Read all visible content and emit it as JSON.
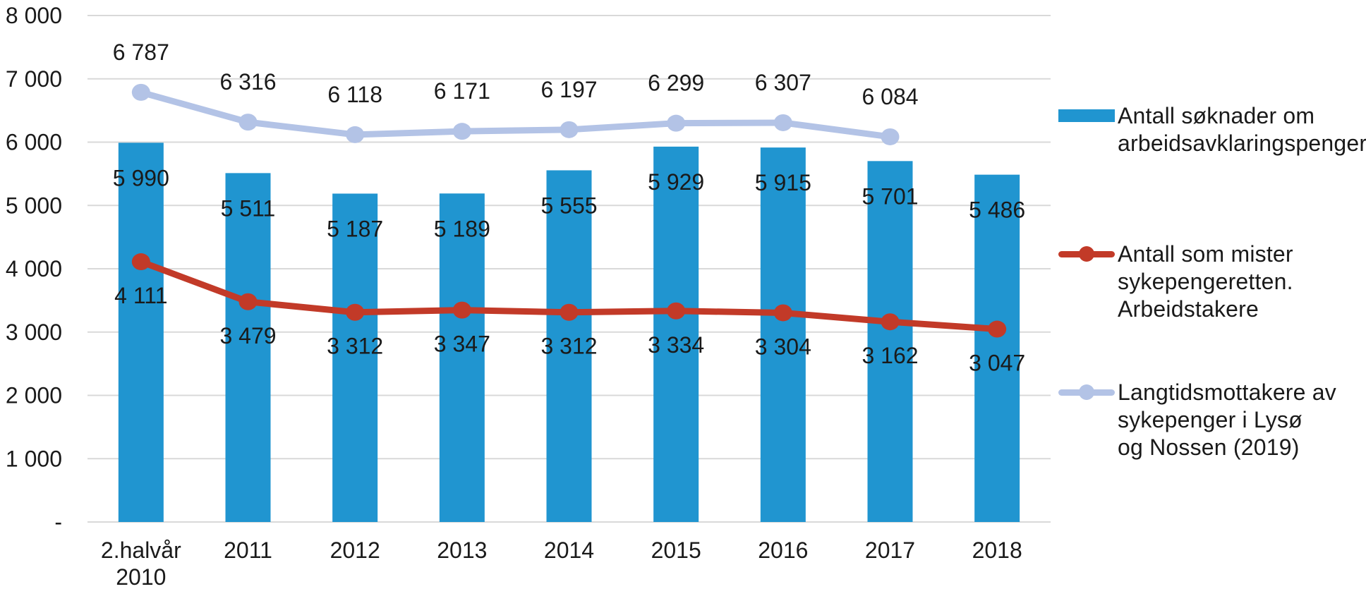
{
  "chart_data": {
    "type": "bar",
    "subtype": "combo-bar-and-lines",
    "title": "",
    "xlabel": "",
    "ylabel": "",
    "categories": [
      "2.halvår\n2010",
      "2011",
      "2012",
      "2013",
      "2014",
      "2015",
      "2016",
      "2017",
      "2018"
    ],
    "y_axis": {
      "min": 0,
      "max": 8000,
      "step": 1000,
      "tick_values": [
        8000,
        7000,
        6000,
        5000,
        4000,
        3000,
        2000,
        1000,
        0
      ],
      "tick_labels": [
        "8 000",
        "7 000",
        "6 000",
        "5 000",
        "4 000",
        "3 000",
        "2 000",
        "1 000",
        "-"
      ],
      "grid": true
    },
    "legend_position": "right",
    "series": [
      {
        "name": "Antall søknader om arbeidsavklaringspenger",
        "type": "bar",
        "color": "#2095D0",
        "values": [
          5990,
          5511,
          5187,
          5189,
          5555,
          5929,
          5915,
          5701,
          5486
        ],
        "value_labels": [
          "5 990",
          "5 511",
          "5 187",
          "5 189",
          "5 555",
          "5 929",
          "5 915",
          "5 701",
          "5 486"
        ]
      },
      {
        "name": "Antall som mister sykepengeretten. Arbeidstakere",
        "type": "line",
        "color": "#C23A28",
        "values": [
          4111,
          3479,
          3312,
          3347,
          3312,
          3334,
          3304,
          3162,
          3047
        ],
        "value_labels": [
          "4 111",
          "3 479",
          "3 312",
          "3 347",
          "3 312",
          "3 334",
          "3 304",
          "3 162",
          "3 047"
        ]
      },
      {
        "name": "Langtidsmottakere av sykepenger i Lysø og Nossen (2019)",
        "type": "line",
        "color": "#B3C3E6",
        "values": [
          6787,
          6316,
          6118,
          6171,
          6197,
          6299,
          6307,
          6084,
          null
        ],
        "value_labels": [
          "6 787",
          "6 316",
          "6 118",
          "6 171",
          "6 197",
          "6 299",
          "6 307",
          "6 084",
          ""
        ]
      }
    ],
    "gridline_color": "#D9D9D9",
    "label_color": "#1a1a1a"
  },
  "legend": {
    "items": [
      {
        "swatch": "bar",
        "color": "#2095D0",
        "lines": [
          "Antall søknader om",
          "arbeidsavklaringspenger"
        ]
      },
      {
        "swatch": "line-dot",
        "color": "#C23A28",
        "lines": [
          "Antall som mister",
          "sykepengeretten.",
          "Arbeidstakere"
        ]
      },
      {
        "swatch": "line-dot",
        "color": "#B3C3E6",
        "lines": [
          "Langtidsmottakere av",
          "sykepenger i Lysø",
          "og Nossen (2019)"
        ]
      }
    ]
  }
}
